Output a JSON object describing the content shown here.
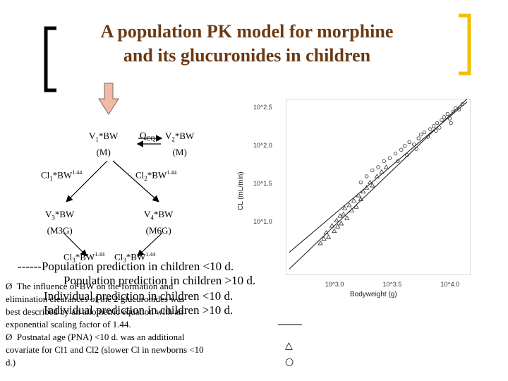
{
  "title": {
    "line1": "A population PK model for morphine",
    "line2": "and its glucuronides in children"
  },
  "diagram": {
    "v1": "V1*BW",
    "v1_unit": "(M)",
    "q": "QCQ",
    "v2": "V2*BW",
    "v2_unit": "(M)",
    "cl1": "Cl1*BW1.44",
    "cl2": "Cl2*BW1.44",
    "v3": "V3*BW",
    "v3_unit": "(M3G)",
    "v4": "V4*BW",
    "v4_unit": "(M6G)",
    "cl3": "Cl3*BW1.44",
    "cl4": "Cl3*BW1.44"
  },
  "legend": {
    "pop_lt10": "------Population prediction in children <10 d.",
    "pop_gt10": "Population prediction in children >10 d.",
    "ind_lt10": "Individual prediction in children <10 d.",
    "ind_gt10": "Individual prediction in children >10 d."
  },
  "bullets": {
    "b1_line1": "The influence of BW on the formation and",
    "b1_line2": "elimination clearances of the 2 glucuronides was",
    "b1_line3": "best described by an allometric equation with an",
    "b1_line4": "exponential scaling factor of 1.44.",
    "b2_line1": "Postnatal age (PNA) <10 d. was an additional",
    "b2_line2": "covariate for Cl1 and Cl2 (slower Cl in newborns <10",
    "b2_line3": "d.)",
    "bullet_symbol": "Ø"
  },
  "chart_data": {
    "type": "scatter",
    "ylabel": "CL (mL/min)",
    "xlabel": "Bodyweight (g)",
    "x_scale": "log10",
    "y_scale": "log10",
    "xlim_log10": [
      2.55,
      4.15
    ],
    "ylim_log10": [
      0.3,
      2.62
    ],
    "x_ticks": [
      "10^3.0",
      "10^3.5",
      "10^4.0"
    ],
    "x_tick_values": [
      3.0,
      3.5,
      4.0
    ],
    "y_ticks": [
      "10^2.5",
      "10^2.0",
      "10^1.5",
      "10^1.0"
    ],
    "y_tick_values": [
      2.5,
      2.0,
      1.5,
      1.0
    ],
    "grid": false,
    "series": [
      {
        "marker": "triangle",
        "points": [
          [
            2.85,
            0.72
          ],
          [
            2.88,
            0.78
          ],
          [
            2.9,
            0.86
          ],
          [
            2.92,
            0.8
          ],
          [
            2.95,
            0.95
          ],
          [
            2.97,
            0.88
          ],
          [
            2.99,
            1.02
          ],
          [
            3.0,
            0.94
          ],
          [
            3.02,
            1.08
          ],
          [
            3.03,
            0.98
          ],
          [
            3.05,
            1.1
          ],
          [
            3.06,
            1.18
          ],
          [
            3.08,
            1.05
          ],
          [
            3.1,
            1.22
          ],
          [
            3.12,
            1.15
          ],
          [
            3.14,
            1.28
          ],
          [
            3.16,
            1.2
          ],
          [
            3.18,
            1.35
          ],
          [
            3.2,
            1.3
          ],
          [
            3.22,
            1.4
          ],
          [
            3.25,
            1.45
          ],
          [
            3.28,
            1.52
          ],
          [
            3.3,
            1.48
          ],
          [
            3.34,
            1.6
          ],
          [
            3.38,
            1.66
          ],
          [
            3.42,
            1.72
          ]
        ]
      },
      {
        "marker": "circle",
        "points": [
          [
            3.2,
            1.52
          ],
          [
            3.25,
            1.6
          ],
          [
            3.3,
            1.68
          ],
          [
            3.35,
            1.72
          ],
          [
            3.4,
            1.8
          ],
          [
            3.45,
            1.84
          ],
          [
            3.5,
            1.9
          ],
          [
            3.55,
            1.95
          ],
          [
            3.58,
            2.0
          ],
          [
            3.62,
            2.05
          ],
          [
            3.66,
            2.02
          ],
          [
            3.7,
            2.1
          ],
          [
            3.72,
            2.15
          ],
          [
            3.75,
            2.18
          ],
          [
            3.78,
            2.12
          ],
          [
            3.8,
            2.22
          ],
          [
            3.83,
            2.26
          ],
          [
            3.86,
            2.3
          ],
          [
            3.88,
            2.24
          ],
          [
            3.9,
            2.34
          ],
          [
            3.92,
            2.38
          ],
          [
            3.95,
            2.42
          ],
          [
            3.97,
            2.36
          ],
          [
            4.0,
            2.45
          ],
          [
            4.02,
            2.5
          ],
          [
            4.05,
            2.48
          ],
          [
            4.08,
            2.55
          ],
          [
            3.52,
            1.8
          ],
          [
            3.6,
            1.88
          ],
          [
            3.68,
            1.96
          ],
          [
            3.85,
            2.2
          ],
          [
            3.98,
            2.3
          ]
        ]
      }
    ],
    "lines": [
      {
        "style": "solid",
        "from": [
          2.58,
          0.38
        ],
        "to": [
          4.12,
          2.62
        ]
      },
      {
        "style": "solid",
        "from": [
          2.58,
          0.6
        ],
        "to": [
          4.12,
          2.58
        ]
      }
    ]
  },
  "right_legend": {
    "triangle": "△",
    "circle": "○"
  },
  "colors": {
    "title": "#6b3a14",
    "bracket": "#f0c000",
    "arrow": "#f4b8a8",
    "arrow_border": "#7a6a60"
  }
}
